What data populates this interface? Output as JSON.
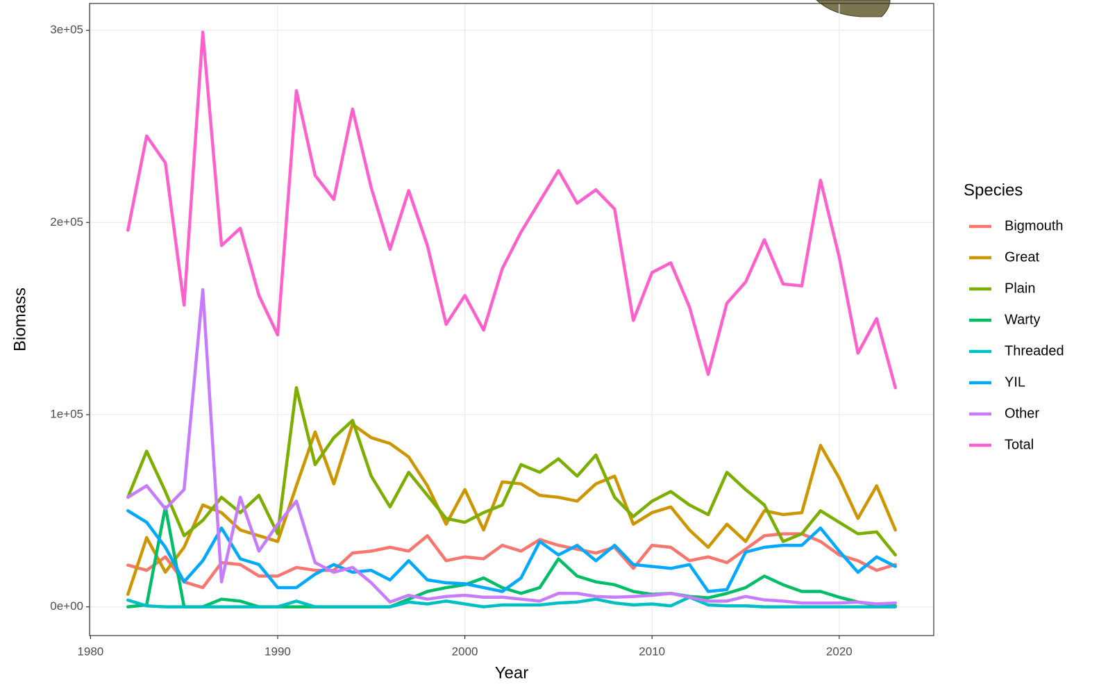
{
  "chart_data": {
    "type": "line",
    "x_label": "Year",
    "y_label": "Biomass",
    "legend_title": "Species",
    "legend": "right",
    "grid": true,
    "xlim": [
      1979.95,
      2025.05
    ],
    "ylim": [
      -14950,
      313950
    ],
    "xticks": [
      1980,
      1990,
      2000,
      2010,
      2020
    ],
    "yticks": [
      {
        "value": 0,
        "label": "0e+00"
      },
      {
        "value": 100000,
        "label": "1e+05"
      },
      {
        "value": 200000,
        "label": "2e+05"
      },
      {
        "value": 300000,
        "label": "3e+05"
      }
    ],
    "x": [
      1982,
      1983,
      1984,
      1985,
      1986,
      1987,
      1988,
      1989,
      1990,
      1991,
      1992,
      1993,
      1994,
      1995,
      1996,
      1997,
      1998,
      1999,
      2000,
      2001,
      2002,
      2003,
      2004,
      2005,
      2006,
      2007,
      2008,
      2009,
      2010,
      2011,
      2012,
      2013,
      2014,
      2015,
      2016,
      2017,
      2018,
      2019,
      2020,
      2021,
      2022,
      2023
    ],
    "series": [
      {
        "name": "Bigmouth",
        "color": "#F8766D",
        "values": [
          21700,
          19000,
          26000,
          13000,
          10000,
          23000,
          22000,
          16000,
          16000,
          20500,
          19000,
          19000,
          28000,
          29000,
          31000,
          29000,
          37000,
          24000,
          26000,
          25000,
          32000,
          29000,
          35000,
          32000,
          30000,
          28000,
          31000,
          20000,
          32000,
          31000,
          24000,
          26000,
          23000,
          30000,
          37000,
          38000,
          38000,
          34000,
          27000,
          24000,
          19000,
          22000
        ]
      },
      {
        "name": "Great",
        "color": "#CD9600",
        "values": [
          6500,
          36000,
          18000,
          31000,
          53000,
          49000,
          40000,
          37000,
          34000,
          63000,
          91000,
          64000,
          95000,
          88000,
          85000,
          78000,
          63000,
          43000,
          61000,
          40000,
          65000,
          64000,
          58000,
          57000,
          55000,
          64000,
          68000,
          43000,
          49000,
          52000,
          40000,
          31000,
          43000,
          34000,
          50000,
          48000,
          49000,
          84000,
          67000,
          46000,
          63000,
          40000
        ]
      },
      {
        "name": "Plain",
        "color": "#7CAE00",
        "values": [
          57000,
          81000,
          60000,
          37000,
          45000,
          57000,
          49000,
          58000,
          38000,
          114000,
          74000,
          88000,
          97000,
          68000,
          52000,
          70000,
          58000,
          46000,
          44000,
          49000,
          53000,
          74000,
          70000,
          77000,
          68000,
          79000,
          57000,
          47000,
          55000,
          60000,
          53000,
          48000,
          70000,
          61000,
          53000,
          34000,
          38000,
          50000,
          44000,
          38000,
          39000,
          27000
        ]
      },
      {
        "name": "Warty",
        "color": "#00BE67",
        "values": [
          0,
          1000,
          52000,
          0,
          0,
          4000,
          3000,
          0,
          0,
          0,
          0,
          0,
          0,
          0,
          0,
          4000,
          8000,
          10000,
          11500,
          15000,
          10000,
          7000,
          10000,
          25000,
          16000,
          13000,
          11500,
          8000,
          6500,
          7000,
          5400,
          4700,
          7000,
          10000,
          16000,
          11500,
          8000,
          8000,
          5000,
          2500,
          1000,
          500
        ]
      },
      {
        "name": "Threaded",
        "color": "#00BFC4",
        "values": [
          3500,
          500,
          0,
          0,
          0,
          0,
          0,
          0,
          0,
          3000,
          0,
          0,
          0,
          0,
          0,
          2500,
          1500,
          3000,
          1500,
          0,
          1000,
          1000,
          1000,
          2000,
          2500,
          4000,
          2000,
          1000,
          1500,
          500,
          5000,
          1000,
          500,
          500,
          0,
          0,
          0,
          0,
          0,
          0,
          0,
          0
        ]
      },
      {
        "name": "YIL",
        "color": "#00A9FF",
        "values": [
          50000,
          44000,
          31000,
          13000,
          24000,
          41000,
          25000,
          22000,
          10000,
          10000,
          17000,
          22000,
          18000,
          19000,
          14000,
          24000,
          14000,
          12500,
          12000,
          10000,
          8000,
          15000,
          34000,
          27000,
          32000,
          24000,
          32000,
          22000,
          21000,
          20000,
          22000,
          8000,
          9000,
          28500,
          31000,
          32000,
          32000,
          41000,
          29000,
          18000,
          26000,
          21000
        ]
      },
      {
        "name": "Other",
        "color": "#C77CFF",
        "values": [
          57000,
          63000,
          51000,
          61000,
          165000,
          13000,
          57000,
          29000,
          43000,
          55000,
          23000,
          18000,
          20500,
          12500,
          2500,
          6000,
          4000,
          5400,
          6000,
          5000,
          5000,
          4000,
          3000,
          7000,
          7000,
          5400,
          5000,
          5400,
          6000,
          7000,
          5000,
          3000,
          3000,
          5400,
          3600,
          3000,
          2000,
          2000,
          2000,
          2500,
          1500,
          2000
        ]
      },
      {
        "name": "Total",
        "color": "#FF61CC",
        "values": [
          196000,
          245000,
          231000,
          157000,
          299000,
          188000,
          197000,
          162000,
          141500,
          268600,
          224500,
          212000,
          259000,
          218000,
          186000,
          216600,
          188000,
          147000,
          162000,
          144000,
          176000,
          195000,
          211000,
          227000,
          210000,
          217000,
          207000,
          149000,
          174000,
          179000,
          156000,
          121000,
          158000,
          169000,
          191000,
          168000,
          167000,
          222000,
          182000,
          132000,
          150000,
          114000
        ]
      }
    ]
  }
}
